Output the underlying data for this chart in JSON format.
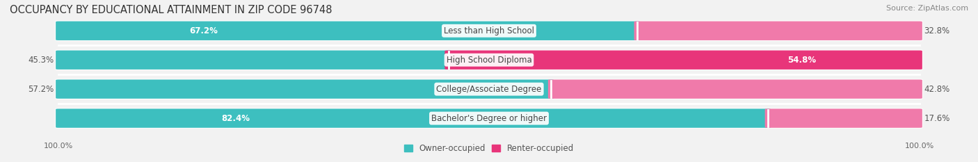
{
  "title": "OCCUPANCY BY EDUCATIONAL ATTAINMENT IN ZIP CODE 96748",
  "source": "Source: ZipAtlas.com",
  "categories": [
    "Less than High School",
    "High School Diploma",
    "College/Associate Degree",
    "Bachelor's Degree or higher"
  ],
  "owner_pct": [
    67.2,
    45.3,
    57.2,
    82.4
  ],
  "renter_pct": [
    32.8,
    54.8,
    42.8,
    17.6
  ],
  "owner_color": "#3dbfbf",
  "renter_color": "#f07aaa",
  "renter_color_bright": "#e8357a",
  "bg_color": "#f2f2f2",
  "bar_bg_color": "#e4e4e4",
  "row_bg_light": "#f8f8f8",
  "title_fontsize": 10.5,
  "label_fontsize": 8.5,
  "pct_fontsize": 8.5,
  "source_fontsize": 8,
  "legend_fontsize": 8.5,
  "axis_label_fontsize": 8
}
